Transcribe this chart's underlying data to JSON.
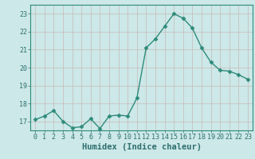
{
  "x": [
    0,
    1,
    2,
    3,
    4,
    5,
    6,
    7,
    8,
    9,
    10,
    11,
    12,
    13,
    14,
    15,
    16,
    17,
    18,
    19,
    20,
    21,
    22,
    23
  ],
  "y": [
    17.1,
    17.3,
    17.6,
    17.0,
    16.65,
    16.7,
    17.15,
    16.6,
    17.3,
    17.35,
    17.3,
    18.3,
    21.1,
    21.6,
    22.3,
    23.0,
    22.75,
    22.2,
    21.1,
    20.3,
    19.85,
    19.8,
    19.6,
    19.35
  ],
  "line_color": "#2e8b7a",
  "marker": "D",
  "markersize": 2.5,
  "linewidth": 1.0,
  "bg_color": "#cce8e8",
  "grid_color_v": "#c8b8b8",
  "grid_color_h": "#c8b8b8",
  "xlabel": "Humidex (Indice chaleur)",
  "ylim": [
    16.5,
    23.5
  ],
  "xlim": [
    -0.5,
    23.5
  ],
  "yticks": [
    17,
    18,
    19,
    20,
    21,
    22,
    23
  ],
  "xticks": [
    0,
    1,
    2,
    3,
    4,
    5,
    6,
    7,
    8,
    9,
    10,
    11,
    12,
    13,
    14,
    15,
    16,
    17,
    18,
    19,
    20,
    21,
    22,
    23
  ],
  "tick_fontsize": 6,
  "xlabel_fontsize": 7.5,
  "tick_color": "#2e6e6e",
  "spine_color": "#2e8b7a"
}
